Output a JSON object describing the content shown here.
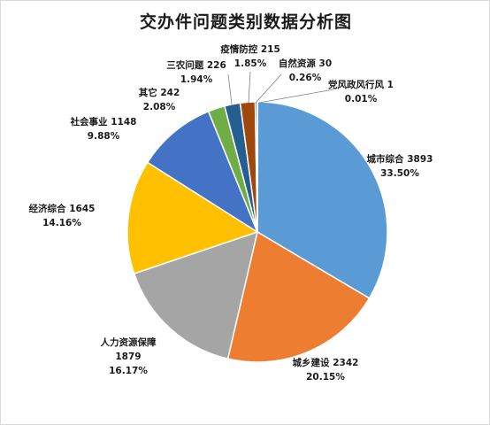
{
  "chart_data": {
    "type": "pie",
    "title": "交办件问题类别数据分析图",
    "categories": [
      "城市综合",
      "城乡建设",
      "人力资源保障",
      "经济综合",
      "社会事业",
      "其它",
      "三农问题",
      "疫情防控",
      "自然资源",
      "党风政风行风"
    ],
    "values": [
      3893,
      2342,
      1879,
      1645,
      1148,
      242,
      226,
      215,
      30,
      1
    ],
    "percentages": [
      "33.50%",
      "20.15%",
      "16.17%",
      "14.16%",
      "9.88%",
      "2.08%",
      "1.94%",
      "1.85%",
      "0.26%",
      "0.01%"
    ],
    "colors": [
      "#5B9BD5",
      "#ED7D31",
      "#A5A5A5",
      "#FFC000",
      "#4472C4",
      "#70AD47",
      "#255E91",
      "#9E480E",
      "#636363",
      "#997300"
    ],
    "start_angle_deg": 0,
    "direction": "clockwise",
    "legend": "none",
    "data_labels": true
  }
}
